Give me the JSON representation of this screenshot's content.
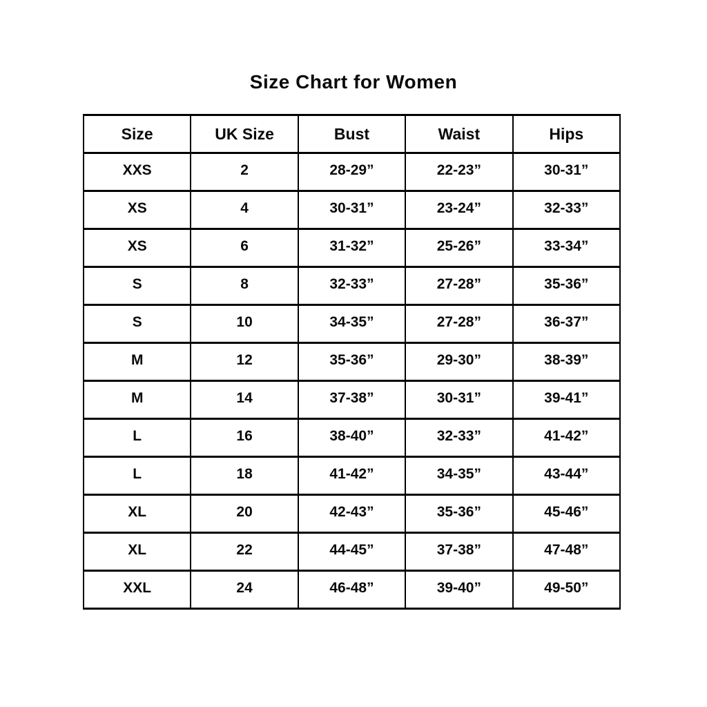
{
  "page": {
    "title": "Size Chart for Women"
  },
  "chart_data": {
    "type": "table",
    "title": "Size Chart for Women",
    "columns": [
      "Size",
      "UK Size",
      "Bust",
      "Waist",
      "Hips"
    ],
    "rows": [
      [
        "XXS",
        "2",
        "28-29”",
        "22-23”",
        "30-31”"
      ],
      [
        "XS",
        "4",
        "30-31”",
        "23-24”",
        "32-33”"
      ],
      [
        "XS",
        "6",
        "31-32”",
        "25-26”",
        "33-34”"
      ],
      [
        "S",
        "8",
        "32-33”",
        "27-28”",
        "35-36”"
      ],
      [
        "S",
        "10",
        "34-35”",
        "27-28”",
        "36-37”"
      ],
      [
        "M",
        "12",
        "35-36”",
        "29-30”",
        "38-39”"
      ],
      [
        "M",
        "14",
        "37-38”",
        "30-31”",
        "39-41”"
      ],
      [
        "L",
        "16",
        "38-40”",
        "32-33”",
        "41-42”"
      ],
      [
        "L",
        "18",
        "41-42”",
        "34-35”",
        "43-44”"
      ],
      [
        "XL",
        "20",
        "42-43”",
        "35-36”",
        "45-46”"
      ],
      [
        "XL",
        "22",
        "44-45”",
        "37-38”",
        "47-48”"
      ],
      [
        "XXL",
        "24",
        "46-48”",
        "39-40”",
        "49-50”"
      ]
    ],
    "layout": {
      "grid": "all-borders",
      "border_color": "#000000",
      "background": "#ffffff",
      "text_color": "#0a0a0a"
    }
  }
}
